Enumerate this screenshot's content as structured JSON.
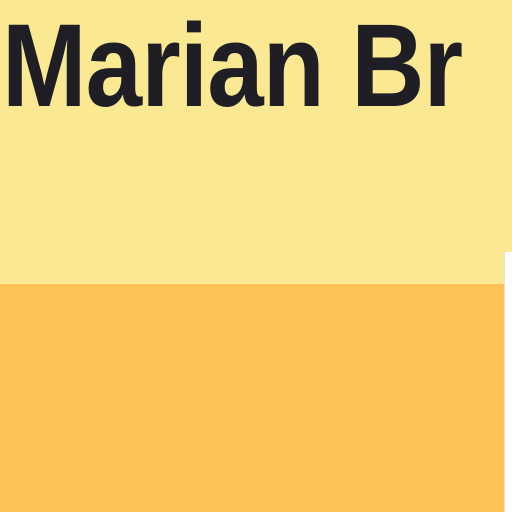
{
  "header": {
    "title": "Marian Br"
  },
  "colors": {
    "header_background": "#FAE992",
    "content_background": "#FEC155",
    "side_panel_background": "#FFFFFF",
    "title_text": "#1F1E24"
  }
}
